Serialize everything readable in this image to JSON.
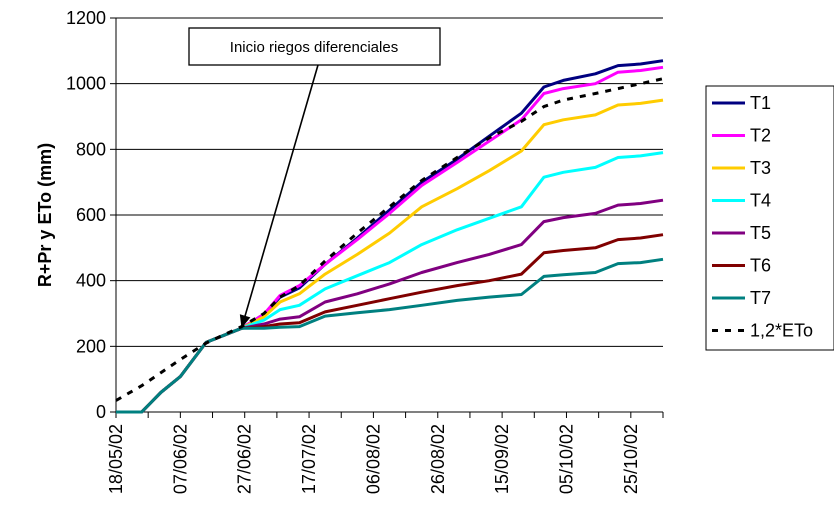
{
  "chart_data": {
    "type": "line",
    "title": "",
    "xlabel": "",
    "ylabel": "R+Pr y ETo (mm)",
    "ylim": [
      0,
      1200
    ],
    "yticks": [
      0,
      200,
      400,
      600,
      800,
      1000,
      1200
    ],
    "xlim": [
      "2002-05-18",
      "2002-11-04"
    ],
    "xticks": [
      "18/05/02",
      "07/06/02",
      "27/06/02",
      "17/07/02",
      "06/08/02",
      "26/08/02",
      "15/09/02",
      "05/10/02",
      "25/10/02"
    ],
    "grid": "horizontal",
    "legend_position": "right",
    "annotation": {
      "text": "Inicio riegos diferenciales",
      "points_to": {
        "x": "2002-06-26",
        "y": 255
      }
    },
    "x": [
      "2002-05-18",
      "2002-05-26",
      "2002-06-01",
      "2002-06-07",
      "2002-06-15",
      "2002-06-26",
      "2002-07-03",
      "2002-07-08",
      "2002-07-14",
      "2002-07-22",
      "2002-08-01",
      "2002-08-11",
      "2002-08-21",
      "2002-09-01",
      "2002-09-11",
      "2002-09-21",
      "2002-09-28",
      "2002-10-04",
      "2002-10-14",
      "2002-10-21",
      "2002-10-28",
      "2002-11-04"
    ],
    "series": [
      {
        "name": "T1",
        "color": "#000080",
        "dash": "solid",
        "values": [
          0,
          0,
          60,
          108,
          212,
          255,
          298,
          350,
          378,
          450,
          530,
          615,
          700,
          770,
          840,
          910,
          990,
          1010,
          1030,
          1055,
          1060,
          1070
        ]
      },
      {
        "name": "T2",
        "color": "#ff00ff",
        "dash": "solid",
        "values": [
          0,
          0,
          60,
          108,
          212,
          255,
          298,
          355,
          385,
          450,
          525,
          605,
          690,
          760,
          825,
          890,
          970,
          985,
          1000,
          1035,
          1040,
          1050
        ]
      },
      {
        "name": "T3",
        "color": "#ffcc00",
        "dash": "solid",
        "values": [
          0,
          0,
          60,
          108,
          212,
          255,
          290,
          335,
          360,
          420,
          480,
          545,
          625,
          680,
          735,
          795,
          875,
          890,
          905,
          935,
          940,
          950
        ]
      },
      {
        "name": "T4",
        "color": "#00ffff",
        "dash": "solid",
        "values": [
          0,
          0,
          60,
          108,
          212,
          255,
          280,
          312,
          325,
          375,
          415,
          455,
          510,
          555,
          590,
          625,
          715,
          730,
          745,
          775,
          780,
          790
        ]
      },
      {
        "name": "T5",
        "color": "#800080",
        "dash": "solid",
        "values": [
          0,
          0,
          60,
          108,
          212,
          255,
          268,
          283,
          290,
          335,
          360,
          390,
          425,
          455,
          480,
          510,
          580,
          592,
          605,
          630,
          635,
          645
        ]
      },
      {
        "name": "T6",
        "color": "#800000",
        "dash": "solid",
        "values": [
          0,
          0,
          60,
          108,
          212,
          255,
          260,
          268,
          272,
          305,
          325,
          345,
          365,
          385,
          400,
          420,
          485,
          492,
          500,
          525,
          530,
          540
        ]
      },
      {
        "name": "T7",
        "color": "#008080",
        "dash": "solid",
        "values": [
          0,
          0,
          60,
          108,
          212,
          255,
          255,
          258,
          260,
          292,
          302,
          312,
          325,
          340,
          350,
          358,
          413,
          418,
          425,
          452,
          455,
          465
        ]
      },
      {
        "name": "1,2*ETo",
        "color": "#000000",
        "dash": "dashed",
        "values": [
          35,
          80,
          120,
          160,
          210,
          260,
          300,
          350,
          385,
          460,
          545,
          625,
          705,
          775,
          835,
          885,
          930,
          950,
          970,
          985,
          1000,
          1015
        ]
      }
    ]
  }
}
